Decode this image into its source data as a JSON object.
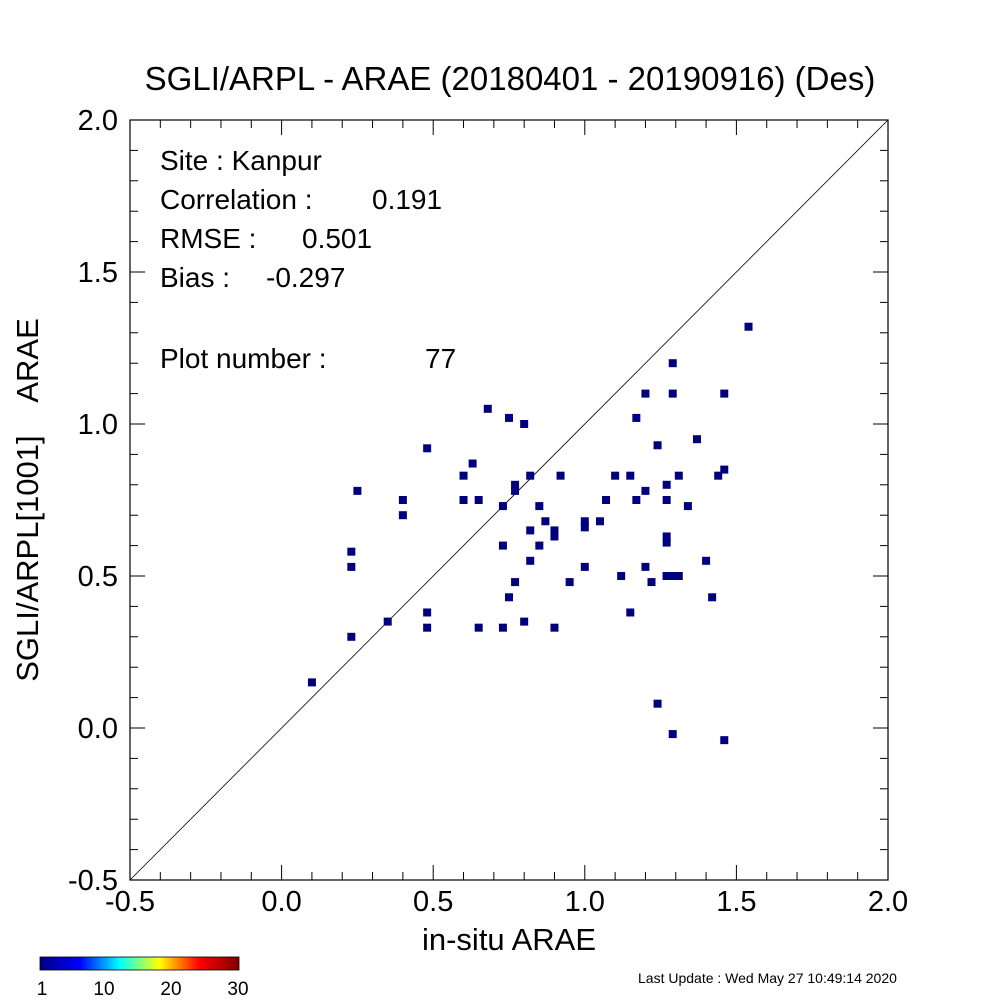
{
  "chart_data": {
    "type": "scatter",
    "title": "SGLI/ARPL - ARAE (20180401 - 20190916) (Des)",
    "xlabel": "in-situ ARAE",
    "ylabel": "SGLI/ARPL[1001]    ARAE",
    "xlim": [
      -0.5,
      2.0
    ],
    "ylim": [
      -0.5,
      2.0
    ],
    "xticks": [
      "-0.5",
      "0.0",
      "0.5",
      "1.0",
      "1.5",
      "2.0"
    ],
    "yticks": [
      "-0.5",
      "0.0",
      "0.5",
      "1.0",
      "1.5",
      "2.0"
    ],
    "one_to_one_line": true,
    "grid": false,
    "point_color": "#00007f",
    "stats": {
      "site_label": "Site : Kanpur",
      "corr_label": "Correlation :",
      "corr_value": "0.191",
      "rmse_label": "RMSE :",
      "rmse_value": "0.501",
      "bias_label": "Bias :",
      "bias_value": "-0.297",
      "plot_label": "Plot number :",
      "plot_value": "77"
    },
    "points": [
      [
        0.1,
        0.15
      ],
      [
        0.23,
        0.58
      ],
      [
        0.23,
        0.53
      ],
      [
        0.23,
        0.3
      ],
      [
        0.25,
        0.78
      ],
      [
        0.35,
        0.35
      ],
      [
        0.4,
        0.75
      ],
      [
        0.4,
        0.7
      ],
      [
        0.48,
        0.92
      ],
      [
        0.48,
        0.38
      ],
      [
        0.48,
        0.33
      ],
      [
        0.6,
        0.83
      ],
      [
        0.6,
        0.75
      ],
      [
        0.63,
        0.87
      ],
      [
        0.65,
        0.75
      ],
      [
        0.65,
        0.33
      ],
      [
        0.68,
        1.05
      ],
      [
        0.73,
        0.73
      ],
      [
        0.73,
        0.6
      ],
      [
        0.73,
        0.33
      ],
      [
        0.75,
        1.02
      ],
      [
        0.75,
        0.43
      ],
      [
        0.77,
        0.8
      ],
      [
        0.77,
        0.78
      ],
      [
        0.77,
        0.48
      ],
      [
        0.8,
        1.0
      ],
      [
        0.8,
        0.35
      ],
      [
        0.82,
        0.83
      ],
      [
        0.82,
        0.65
      ],
      [
        0.82,
        0.55
      ],
      [
        0.85,
        0.73
      ],
      [
        0.85,
        0.6
      ],
      [
        0.87,
        0.68
      ],
      [
        0.9,
        0.65
      ],
      [
        0.9,
        0.63
      ],
      [
        0.9,
        0.33
      ],
      [
        0.92,
        0.83
      ],
      [
        0.95,
        0.48
      ],
      [
        1.0,
        0.68
      ],
      [
        1.0,
        0.66
      ],
      [
        1.0,
        0.53
      ],
      [
        1.05,
        0.68
      ],
      [
        1.07,
        0.75
      ],
      [
        1.1,
        0.83
      ],
      [
        1.12,
        0.5
      ],
      [
        1.15,
        0.83
      ],
      [
        1.15,
        0.38
      ],
      [
        1.17,
        1.02
      ],
      [
        1.17,
        0.75
      ],
      [
        1.2,
        1.1
      ],
      [
        1.2,
        0.78
      ],
      [
        1.2,
        0.53
      ],
      [
        1.22,
        0.48
      ],
      [
        1.24,
        0.93
      ],
      [
        1.24,
        0.08
      ],
      [
        1.27,
        0.8
      ],
      [
        1.27,
        0.75
      ],
      [
        1.27,
        0.63
      ],
      [
        1.27,
        0.61
      ],
      [
        1.27,
        0.5
      ],
      [
        1.29,
        1.2
      ],
      [
        1.29,
        1.1
      ],
      [
        1.29,
        0.5
      ],
      [
        1.29,
        -0.02
      ],
      [
        1.31,
        0.83
      ],
      [
        1.31,
        0.5
      ],
      [
        1.34,
        0.73
      ],
      [
        1.37,
        0.95
      ],
      [
        1.4,
        0.55
      ],
      [
        1.42,
        0.43
      ],
      [
        1.44,
        0.83
      ],
      [
        1.46,
        1.1
      ],
      [
        1.46,
        0.85
      ],
      [
        1.46,
        -0.04
      ],
      [
        1.54,
        1.32
      ],
      [
        1.27,
        0.5
      ],
      [
        1.29,
        0.5
      ]
    ],
    "colorbar": {
      "ticks": [
        "1",
        "10",
        "20",
        "30"
      ],
      "stops": [
        "#00007f",
        "#0000ff",
        "#00ffff",
        "#ffff00",
        "#ff0000",
        "#7f0000"
      ]
    }
  },
  "footer": {
    "last_update": "Last Update : Wed May 27 10:49:14 2020"
  }
}
